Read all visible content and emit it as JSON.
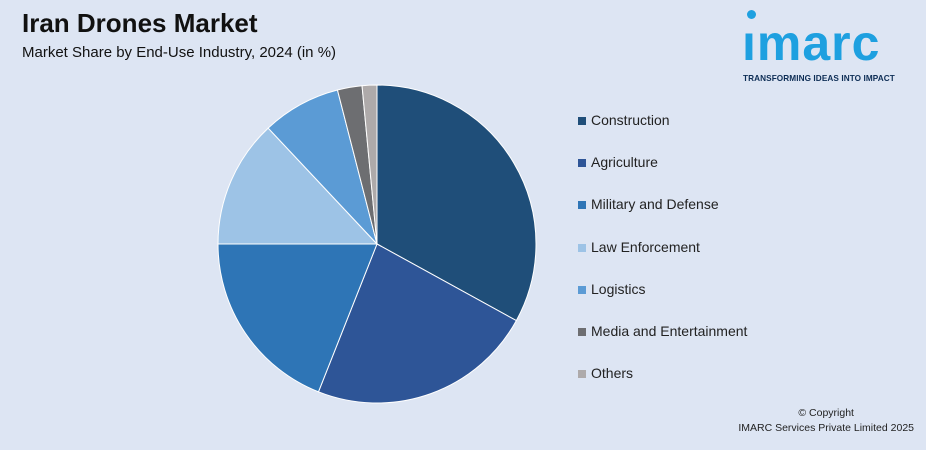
{
  "header": {
    "title": "Iran Drones Market",
    "subtitle": "Market Share by End-Use Industry, 2024 (in %)"
  },
  "logo": {
    "word": "ımarc",
    "tagline": "TRANSFORMING IDEAS INTO IMPACT"
  },
  "footer": {
    "copyright": "© Copyright",
    "company": "IMARC Services Private Limited 2025"
  },
  "chart_data": {
    "type": "pie",
    "title": "Iran Drones Market",
    "subtitle": "Market Share by End-Use Industry, 2024 (in %)",
    "categories": [
      "Construction",
      "Agriculture",
      "Military and Defense",
      "Law Enforcement",
      "Logistics",
      "Media and Entertainment",
      "Others"
    ],
    "values": [
      33,
      23,
      19,
      13,
      8,
      2.5,
      1.5
    ],
    "colors": [
      "#1f4e79",
      "#2e5597",
      "#2e75b6",
      "#9dc3e6",
      "#5b9bd5",
      "#6d6e71",
      "#aeaaaa"
    ],
    "legend_position": "right"
  }
}
